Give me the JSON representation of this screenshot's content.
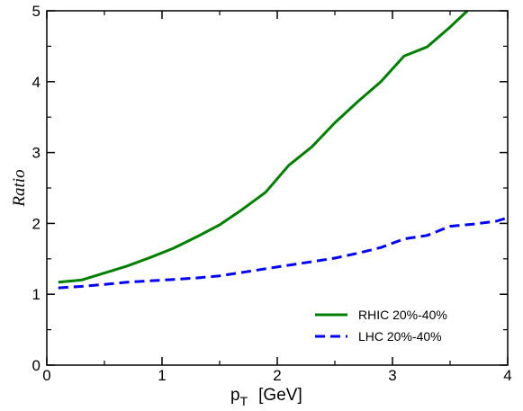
{
  "chart_data": {
    "type": "line",
    "title": "",
    "xlabel": "p_T [GeV]",
    "xlabel_main": "p",
    "xlabel_sub": "T",
    "xlabel_unit": "[GeV]",
    "ylabel": "Ratio",
    "xlim": [
      0,
      4
    ],
    "ylim": [
      0,
      5
    ],
    "xticks": [
      0,
      1,
      2,
      3,
      4
    ],
    "yticks": [
      0,
      1,
      2,
      3,
      4,
      5
    ],
    "xtick_labels": [
      "0",
      "1",
      "2",
      "3",
      "4"
    ],
    "ytick_labels": [
      "0",
      "1",
      "2",
      "3",
      "4",
      "5"
    ],
    "grid": false,
    "legend_position": "bottom-right",
    "series": [
      {
        "name": "RHIC 20%-40%",
        "color": "#008000",
        "style": "solid",
        "x": [
          0.1,
          0.3,
          0.5,
          0.7,
          0.9,
          1.1,
          1.3,
          1.5,
          1.7,
          1.9,
          2.1,
          2.3,
          2.5,
          2.7,
          2.9,
          3.1,
          3.3,
          3.5,
          3.65
        ],
        "y": [
          1.17,
          1.2,
          1.3,
          1.4,
          1.52,
          1.65,
          1.81,
          1.98,
          2.2,
          2.44,
          2.82,
          3.08,
          3.42,
          3.72,
          4.0,
          4.36,
          4.49,
          4.77,
          5.0
        ]
      },
      {
        "name": "LHC 20%-40%",
        "color": "#0000ff",
        "style": "dashed",
        "x": [
          0.1,
          0.3,
          0.5,
          0.7,
          0.9,
          1.1,
          1.3,
          1.5,
          1.7,
          1.9,
          2.1,
          2.3,
          2.5,
          2.7,
          2.9,
          3.1,
          3.3,
          3.5,
          3.7,
          3.9,
          4.0
        ],
        "y": [
          1.09,
          1.11,
          1.14,
          1.17,
          1.19,
          1.21,
          1.23,
          1.26,
          1.31,
          1.36,
          1.41,
          1.46,
          1.51,
          1.58,
          1.66,
          1.78,
          1.83,
          1.96,
          1.99,
          2.03,
          2.08
        ]
      }
    ]
  }
}
